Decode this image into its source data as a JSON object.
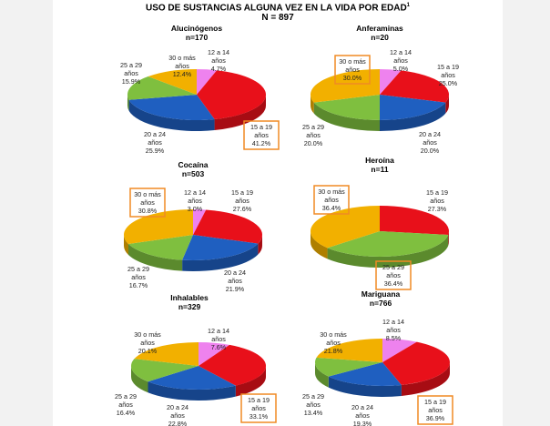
{
  "header": {
    "title": "USO DE SUSTANCIAS ALGUNA VEZ EN LA VIDA POR EDAD",
    "title_sup": "1",
    "subtitle": "N = 897"
  },
  "colors": {
    "12 a 14 años": "#ee82ee",
    "15 a 19 años": "#e8101a",
    "20 a 24 años": "#1f5fc0",
    "25 a 29 años": "#7fbf3f",
    "30 o más años": "#f2b000",
    "highlight": "#f08a24"
  },
  "chart_data": [
    {
      "type": "pie",
      "title": "Alucinógenos",
      "n": "n=170",
      "slices": [
        {
          "category": "12 a 14 años",
          "label_lines": [
            "12 a 14",
            "años"
          ],
          "value": 4.7,
          "value_label": "4.7%"
        },
        {
          "category": "15 a 19 años",
          "label_lines": [
            "15 a 19",
            "años"
          ],
          "value": 41.2,
          "value_label": "41.2%"
        },
        {
          "category": "20 a 24 años",
          "label_lines": [
            "20 a 24",
            "años"
          ],
          "value": 25.9,
          "value_label": "25.9%"
        },
        {
          "category": "25 a 29 años",
          "label_lines": [
            "25 a 29",
            "años"
          ],
          "value": 15.9,
          "value_label": "15.9%"
        },
        {
          "category": "30 o más años",
          "label_lines": [
            "30 o más",
            "años"
          ],
          "value": 12.4,
          "value_label": "12.4%"
        }
      ],
      "highlighted": "15 a 19 años"
    },
    {
      "type": "pie",
      "title": "Anferaminas",
      "n": "n=20",
      "slices": [
        {
          "category": "12 a 14 años",
          "label_lines": [
            "12 a 14",
            "años"
          ],
          "value": 5.0,
          "value_label": "5.0%"
        },
        {
          "category": "15 a 19 años",
          "label_lines": [
            "15 a 19",
            "años"
          ],
          "value": 25.0,
          "value_label": "25.0%"
        },
        {
          "category": "20 a 24 años",
          "label_lines": [
            "20 a 24",
            "años"
          ],
          "value": 20.0,
          "value_label": "20.0%"
        },
        {
          "category": "25 a 29 años",
          "label_lines": [
            "25 a 29",
            "años"
          ],
          "value": 20.0,
          "value_label": "20.0%"
        },
        {
          "category": "30 o más años",
          "label_lines": [
            "30 o más",
            "años"
          ],
          "value": 30.0,
          "value_label": "30.0%"
        }
      ],
      "highlighted": "30 o más años"
    },
    {
      "type": "pie",
      "title": "Cocaína",
      "n": "n=503",
      "slices": [
        {
          "category": "12 a 14 años",
          "label_lines": [
            "12 a 14",
            "años"
          ],
          "value": 3.0,
          "value_label": "3.0%"
        },
        {
          "category": "15 a 19 años",
          "label_lines": [
            "15 a 19",
            "años"
          ],
          "value": 27.6,
          "value_label": "27.6%"
        },
        {
          "category": "20 a 24 años",
          "label_lines": [
            "20 a 24",
            "años"
          ],
          "value": 21.9,
          "value_label": "21.9%"
        },
        {
          "category": "25 a 29 años",
          "label_lines": [
            "25 a 29",
            "años"
          ],
          "value": 16.7,
          "value_label": "16.7%"
        },
        {
          "category": "30 o más años",
          "label_lines": [
            "30 o más",
            "años"
          ],
          "value": 30.8,
          "value_label": "30.8%"
        }
      ],
      "highlighted": "30 o más años"
    },
    {
      "type": "pie",
      "title": "Heroína",
      "n": "n=11",
      "slices": [
        {
          "category": "15 a 19 años",
          "label_lines": [
            "15 a 19",
            "años"
          ],
          "value": 27.3,
          "value_label": "27.3%"
        },
        {
          "category": "25 a 29 años",
          "label_lines": [
            "25 a 29",
            "años"
          ],
          "value": 36.4,
          "value_label": "36.4%"
        },
        {
          "category": "30 o más años",
          "label_lines": [
            "30 o más",
            "años"
          ],
          "value": 36.4,
          "value_label": "36.4%"
        }
      ],
      "highlighted": [
        "30 o más años",
        "25 a 29 años"
      ]
    },
    {
      "type": "pie",
      "title": "Inhalables",
      "n": "n=329",
      "slices": [
        {
          "category": "12 a 14 años",
          "label_lines": [
            "12 a 14",
            "años"
          ],
          "value": 7.6,
          "value_label": "7.6%"
        },
        {
          "category": "15 a 19 años",
          "label_lines": [
            "15 a 19",
            "años"
          ],
          "value": 33.1,
          "value_label": "33.1%"
        },
        {
          "category": "20 a 24 años",
          "label_lines": [
            "20 a 24",
            "años"
          ],
          "value": 22.8,
          "value_label": "22.8%"
        },
        {
          "category": "25 a 29 años",
          "label_lines": [
            "25 a 29",
            "años"
          ],
          "value": 16.4,
          "value_label": "16.4%"
        },
        {
          "category": "30 o más años",
          "label_lines": [
            "30 o más",
            "años"
          ],
          "value": 20.1,
          "value_label": "20.1%"
        }
      ],
      "highlighted": "15 a 19 años"
    },
    {
      "type": "pie",
      "title": "Mariguana",
      "n": "n=766",
      "slices": [
        {
          "category": "12 a 14 años",
          "label_lines": [
            "12 a 14",
            "años"
          ],
          "value": 8.5,
          "value_label": "8.5%"
        },
        {
          "category": "15 a 19 años",
          "label_lines": [
            "15 a 19",
            "años"
          ],
          "value": 36.9,
          "value_label": "36.9%"
        },
        {
          "category": "20 a 24 años",
          "label_lines": [
            "20 a 24",
            "años"
          ],
          "value": 19.3,
          "value_label": "19.3%"
        },
        {
          "category": "25 a 29 años",
          "label_lines": [
            "25 a 29",
            "años"
          ],
          "value": 13.4,
          "value_label": "13.4%"
        },
        {
          "category": "30 o más años",
          "label_lines": [
            "30 o más",
            "años"
          ],
          "value": 21.8,
          "value_label": "21.8%"
        }
      ],
      "highlighted": "15 a 19 años"
    }
  ]
}
